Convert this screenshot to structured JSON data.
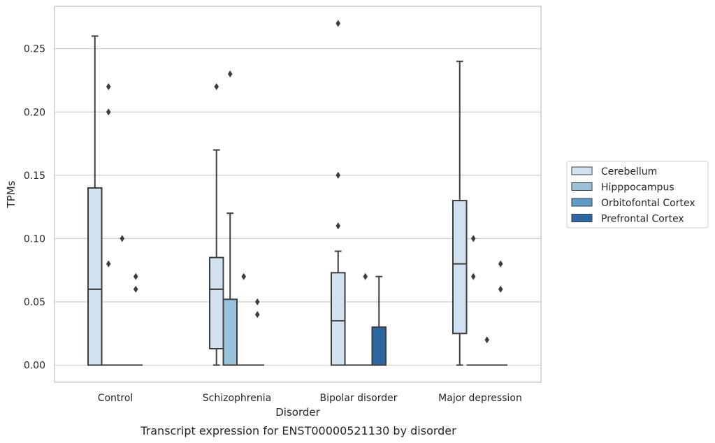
{
  "chart_data": {
    "type": "box",
    "xlabel": "Disorder",
    "ylabel": "TPMs",
    "caption": "Transcript expression for ENST00000521130 by disorder",
    "ylim": [
      -0.0135,
      0.2835
    ],
    "yticks": [
      "0.00",
      "0.05",
      "0.10",
      "0.15",
      "0.20",
      "0.25"
    ],
    "grid": "horizontal",
    "legend_position": "right",
    "categories": [
      "Control",
      "Schizophrenia",
      "Bipolar disorder",
      "Major depression"
    ],
    "series": [
      {
        "name": "Cerebellum",
        "color": "#d2e1f0",
        "boxes": [
          {
            "min": 0.0,
            "q1": 0.0,
            "median": 0.06,
            "q3": 0.14,
            "max": 0.26,
            "outliers": []
          },
          {
            "min": 0.0,
            "q1": 0.013,
            "median": 0.06,
            "q3": 0.085,
            "max": 0.17,
            "outliers": [
              0.22
            ]
          },
          {
            "min": 0.0,
            "q1": 0.0,
            "median": 0.035,
            "q3": 0.073,
            "max": 0.09,
            "outliers": [
              0.27,
              0.15,
              0.11
            ]
          },
          {
            "min": 0.0,
            "q1": 0.025,
            "median": 0.08,
            "q3": 0.13,
            "max": 0.24,
            "outliers": []
          }
        ]
      },
      {
        "name": "Hipppocampus",
        "color": "#9ac2da",
        "boxes": [
          {
            "min": 0.0,
            "q1": 0.0,
            "median": 0.0,
            "q3": 0.0,
            "max": 0.0,
            "outliers": [
              0.22,
              0.2,
              0.08
            ]
          },
          {
            "min": 0.0,
            "q1": 0.0,
            "median": 0.0,
            "q3": 0.052,
            "max": 0.12,
            "outliers": [
              0.23
            ]
          },
          {
            "min": 0.0,
            "q1": 0.0,
            "median": 0.0,
            "q3": 0.0,
            "max": 0.0,
            "outliers": []
          },
          {
            "min": 0.0,
            "q1": 0.0,
            "median": 0.0,
            "q3": 0.0,
            "max": 0.0,
            "outliers": [
              0.1,
              0.07
            ]
          }
        ]
      },
      {
        "name": "Orbitofontal Cortex",
        "color": "#5d9cc9",
        "boxes": [
          {
            "min": 0.0,
            "q1": 0.0,
            "median": 0.0,
            "q3": 0.0,
            "max": 0.0,
            "outliers": [
              0.1
            ]
          },
          {
            "min": 0.0,
            "q1": 0.0,
            "median": 0.0,
            "q3": 0.0,
            "max": 0.0,
            "outliers": [
              0.07
            ]
          },
          {
            "min": 0.0,
            "q1": 0.0,
            "median": 0.0,
            "q3": 0.0,
            "max": 0.0,
            "outliers": [
              0.07
            ]
          },
          {
            "min": 0.0,
            "q1": 0.0,
            "median": 0.0,
            "q3": 0.0,
            "max": 0.0,
            "outliers": [
              0.02
            ]
          }
        ]
      },
      {
        "name": "Prefrontal Cortex",
        "color": "#2b68a3",
        "boxes": [
          {
            "min": 0.0,
            "q1": 0.0,
            "median": 0.0,
            "q3": 0.0,
            "max": 0.0,
            "outliers": [
              0.07,
              0.06
            ]
          },
          {
            "min": 0.0,
            "q1": 0.0,
            "median": 0.0,
            "q3": 0.0,
            "max": 0.0,
            "outliers": [
              0.05,
              0.04
            ]
          },
          {
            "min": 0.0,
            "q1": 0.0,
            "median": 0.0,
            "q3": 0.03,
            "max": 0.07,
            "outliers": []
          },
          {
            "min": 0.0,
            "q1": 0.0,
            "median": 0.0,
            "q3": 0.0,
            "max": 0.0,
            "outliers": [
              0.08,
              0.06
            ]
          }
        ]
      }
    ]
  },
  "colors": {
    "grid": "#cccccc",
    "frame": "#cccccc",
    "line": "#3d3d3d",
    "text": "#262626"
  }
}
